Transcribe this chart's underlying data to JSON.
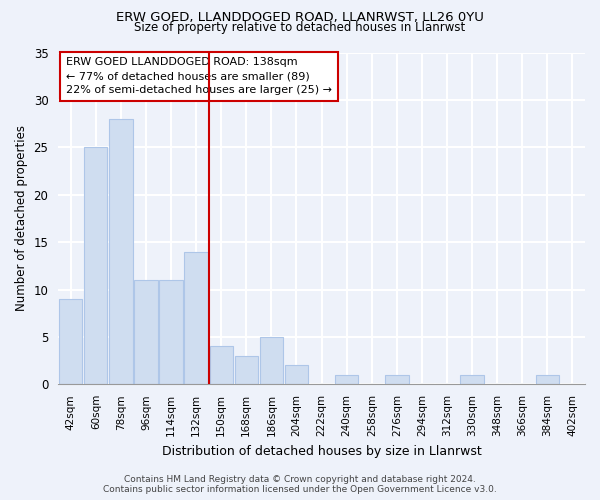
{
  "title1": "ERW GOED, LLANDDOGED ROAD, LLANRWST, LL26 0YU",
  "title2": "Size of property relative to detached houses in Llanrwst",
  "xlabel": "Distribution of detached houses by size in Llanrwst",
  "ylabel": "Number of detached properties",
  "categories": [
    "42sqm",
    "60sqm",
    "78sqm",
    "96sqm",
    "114sqm",
    "132sqm",
    "150sqm",
    "168sqm",
    "186sqm",
    "204sqm",
    "222sqm",
    "240sqm",
    "258sqm",
    "276sqm",
    "294sqm",
    "312sqm",
    "330sqm",
    "348sqm",
    "366sqm",
    "384sqm",
    "402sqm"
  ],
  "values": [
    9,
    25,
    28,
    11,
    11,
    14,
    4,
    3,
    5,
    2,
    0,
    1,
    0,
    1,
    0,
    0,
    1,
    0,
    0,
    1,
    0
  ],
  "bar_color": "#cfddf0",
  "bar_edge_color": "#aec6e8",
  "vline_x_index": 5,
  "vline_color": "#cc0000",
  "annotation_box_text": "ERW GOED LLANDDOGED ROAD: 138sqm\n← 77% of detached houses are smaller (89)\n22% of semi-detached houses are larger (25) →",
  "ylim": [
    0,
    35
  ],
  "yticks": [
    0,
    5,
    10,
    15,
    20,
    25,
    30,
    35
  ],
  "background_color": "#eef2fa",
  "grid_color": "#ffffff",
  "footer": "Contains HM Land Registry data © Crown copyright and database right 2024.\nContains public sector information licensed under the Open Government Licence v3.0."
}
